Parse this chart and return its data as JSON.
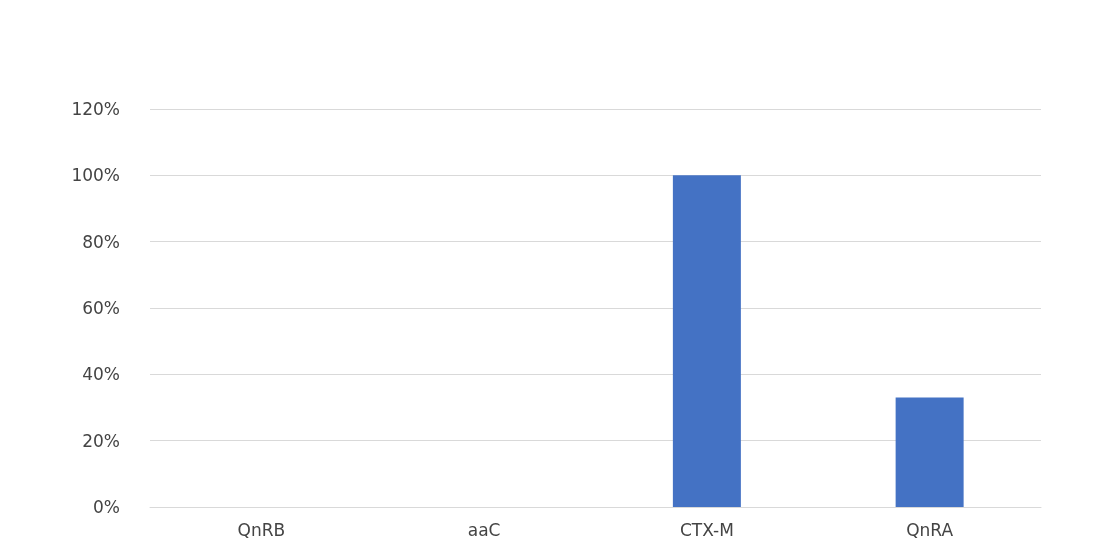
{
  "chart_data": {
    "type": "bar",
    "categories": [
      "QnRB",
      "aaC",
      "CTX-M",
      "QnRA"
    ],
    "values": [
      0,
      0,
      100,
      33
    ],
    "color": "#4472c4",
    "ylim": [
      0,
      120
    ],
    "yticks": [
      {
        "value": 0,
        "label": "0%"
      },
      {
        "value": 20,
        "label": "20%"
      },
      {
        "value": 40,
        "label": "40%"
      },
      {
        "value": 60,
        "label": "60%"
      },
      {
        "value": 80,
        "label": "80%"
      },
      {
        "value": 100,
        "label": "100%"
      },
      {
        "value": 120,
        "label": "120%"
      }
    ],
    "grid": "y"
  }
}
